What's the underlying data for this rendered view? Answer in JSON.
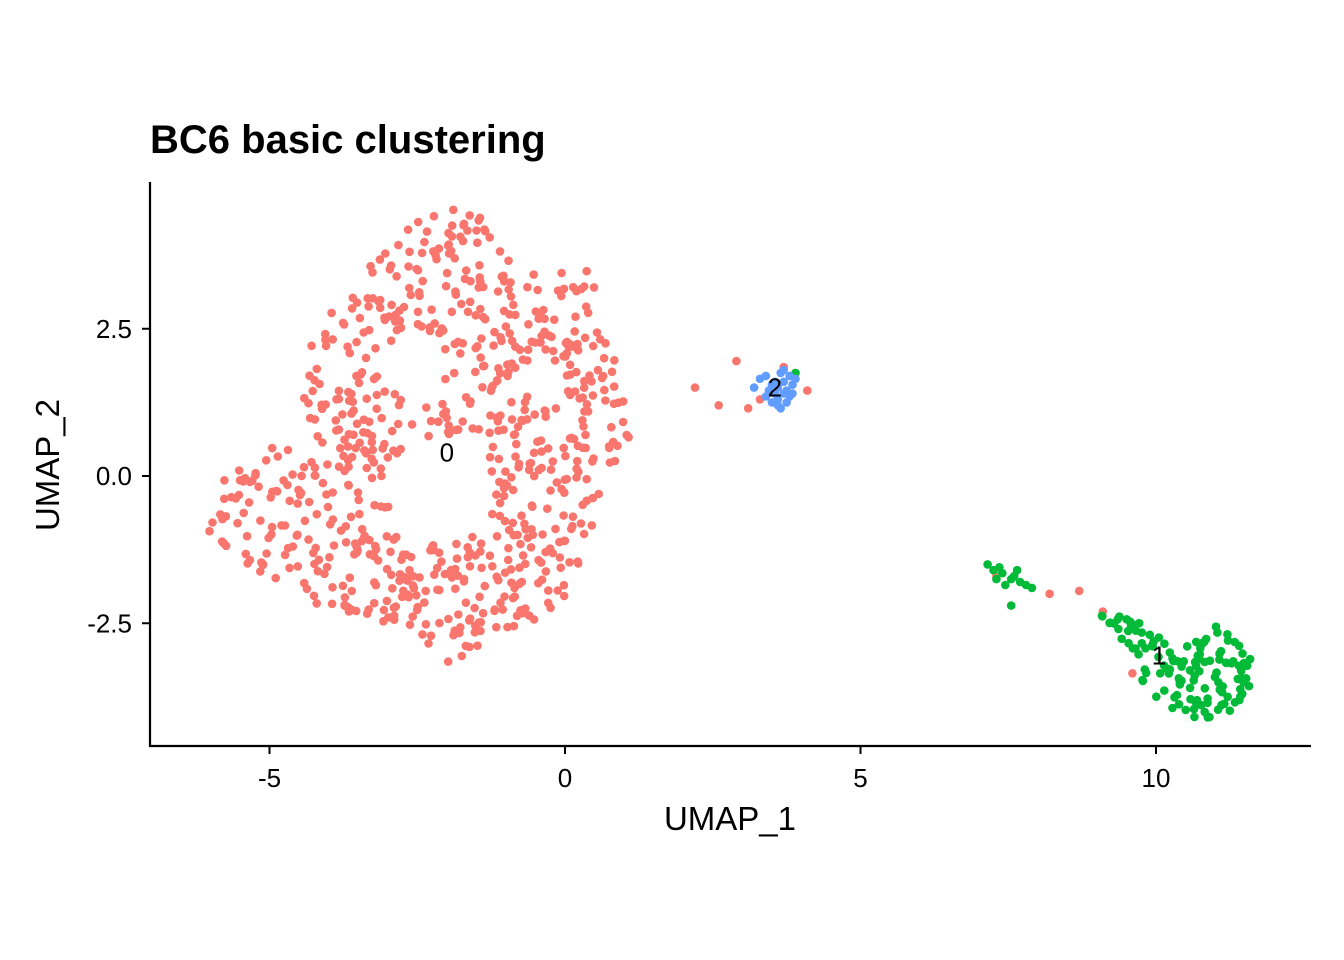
{
  "chart_data": {
    "type": "scatter",
    "title": "BC6 basic clustering",
    "xlabel": "UMAP_1",
    "ylabel": "UMAP_2",
    "xlim": [
      -7.0,
      12.6
    ],
    "ylim": [
      -4.6,
      4.9
    ],
    "xticks": [
      -5,
      0,
      5,
      10
    ],
    "xtick_labels": [
      "-5",
      "0",
      "5",
      "10"
    ],
    "yticks": [
      2.5,
      0.0,
      -2.5
    ],
    "ytick_labels": [
      "2.5",
      "0.0",
      "-2.5"
    ],
    "grid": false,
    "legend": "none",
    "series": [
      {
        "id": "0",
        "color": "#F8766D",
        "label_position": [
          -2.0,
          0.4
        ],
        "points_extra": [
          [
            2.2,
            1.5
          ],
          [
            2.6,
            1.2
          ],
          [
            2.9,
            1.95
          ],
          [
            3.1,
            1.15
          ],
          [
            3.3,
            1.3
          ],
          [
            3.7,
            1.85
          ],
          [
            4.1,
            1.45
          ],
          [
            7.3,
            -1.7
          ],
          [
            8.2,
            -2.0
          ],
          [
            8.7,
            -1.95
          ],
          [
            9.1,
            -2.3
          ],
          [
            9.6,
            -3.35
          ]
        ]
      },
      {
        "id": "1",
        "color": "#00BA38",
        "label_position": [
          10.05,
          -3.05
        ],
        "points": [
          [
            7.15,
            -1.5
          ],
          [
            7.25,
            -1.6
          ],
          [
            7.4,
            -1.65
          ],
          [
            7.55,
            -1.75
          ],
          [
            7.7,
            -1.8
          ],
          [
            7.45,
            -1.85
          ],
          [
            7.6,
            -1.7
          ],
          [
            7.3,
            -1.75
          ],
          [
            7.8,
            -1.85
          ],
          [
            7.9,
            -1.9
          ],
          [
            7.55,
            -2.2
          ],
          [
            7.35,
            -1.55
          ],
          [
            7.65,
            -1.6
          ],
          [
            3.9,
            1.75
          ]
        ]
      },
      {
        "id": "2",
        "color": "#619CFF",
        "label_position": [
          3.55,
          1.5
        ],
        "points": [
          [
            3.2,
            1.5
          ],
          [
            3.3,
            1.65
          ],
          [
            3.4,
            1.7
          ],
          [
            3.5,
            1.55
          ],
          [
            3.55,
            1.4
          ],
          [
            3.6,
            1.3
          ],
          [
            3.65,
            1.75
          ],
          [
            3.7,
            1.6
          ],
          [
            3.75,
            1.45
          ],
          [
            3.8,
            1.35
          ],
          [
            3.6,
            1.2
          ],
          [
            3.5,
            1.25
          ],
          [
            3.85,
            1.55
          ],
          [
            3.9,
            1.65
          ],
          [
            3.7,
            1.8
          ],
          [
            3.45,
            1.45
          ],
          [
            3.65,
            1.15
          ],
          [
            3.75,
            1.25
          ],
          [
            3.55,
            1.6
          ],
          [
            3.85,
            1.4
          ],
          [
            3.4,
            1.35
          ],
          [
            3.6,
            1.5
          ],
          [
            3.7,
            1.4
          ],
          [
            3.8,
            1.7
          ]
        ]
      }
    ]
  }
}
